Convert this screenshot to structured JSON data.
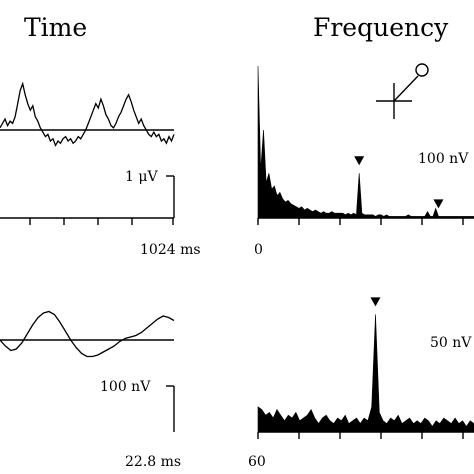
{
  "chart_data": [
    {
      "type": "line",
      "panel": "time-top",
      "title": "Time",
      "x_tick_label_end": "1024 ms",
      "scale_bar_label": "1 μV",
      "values": [
        0.1,
        0.3,
        0.5,
        0.2,
        0.4,
        0.3,
        0.6,
        1.2,
        1.8,
        2.1,
        1.6,
        1.2,
        0.9,
        1.1,
        0.6,
        0.4,
        0.1,
        -0.1,
        -0.3,
        -0.2,
        -0.5,
        -0.4,
        -0.7,
        -0.5,
        -0.6,
        -0.4,
        -0.3,
        -0.5,
        -0.4,
        -0.6,
        -0.5,
        -0.3,
        -0.4,
        -0.2,
        0,
        0.3,
        0.6,
        0.9,
        1.2,
        1.0,
        1.4,
        1.1,
        0.7,
        0.5,
        0.2,
        0.1,
        0.3,
        0.6,
        0.8,
        1.1,
        1.4,
        1.6,
        1.3,
        0.9,
        0.6,
        0.3,
        0.5,
        0.2,
        0,
        -0.2,
        -0.3,
        -0.1,
        -0.3,
        -0.2,
        -0.5,
        -0.4,
        -0.6,
        -0.3,
        -0.5,
        -0.2
      ]
    },
    {
      "type": "line",
      "panel": "time-bottom",
      "x_tick_label_end": "22.8 ms",
      "scale_bar_label": "100 nV",
      "values": [
        0,
        -0.4,
        -0.7,
        -0.6,
        -0.2,
        0.4,
        1.0,
        1.5,
        1.8,
        1.9,
        1.7,
        1.2,
        0.6,
        0,
        -0.5,
        -0.9,
        -1.1,
        -1.1,
        -1.0,
        -0.8,
        -0.6,
        -0.4,
        -0.1,
        0.1,
        0.2,
        0.3,
        0.5,
        0.8,
        1.1,
        1.4,
        1.6,
        1.5,
        1.3
      ]
    },
    {
      "type": "area",
      "panel": "frequency-top",
      "title": "Frequency",
      "x_tick_label_start": "0",
      "scale_bar_label": "100 nV",
      "values": [
        9.5,
        3.0,
        5.5,
        2.2,
        2.8,
        1.8,
        2.0,
        1.4,
        1.6,
        1.2,
        1.0,
        1.1,
        0.9,
        0.8,
        0.7,
        0.6,
        0.7,
        0.5,
        0.6,
        0.5,
        0.4,
        0.5,
        0.4,
        0.3,
        0.4,
        0.3,
        0.3,
        0.4,
        0.3,
        0.3,
        0.3,
        0.3,
        0.2,
        0.3,
        0.2,
        0.3,
        0.2,
        2.8,
        0.3,
        0.2,
        0.2,
        0.2,
        0.2,
        0.1,
        0.2,
        0.2,
        0.1,
        0.2,
        0.1,
        0.1,
        0.1,
        0.1,
        0.1,
        0.1,
        0.1,
        0.2,
        0.1,
        0.1,
        0.1,
        0.1,
        0.1,
        0.1,
        0.4,
        0.1,
        0.1,
        0.6,
        0.1,
        0.1,
        0.1,
        0.1,
        0.1,
        0.1,
        0.1,
        0.1,
        0.1,
        0.1,
        0.1,
        0.1,
        0.1,
        0.1
      ],
      "markers": [
        37,
        66
      ]
    },
    {
      "type": "area",
      "panel": "frequency-bottom",
      "x_tick_label_start": "60",
      "scale_bar_label": "50 nV",
      "values": [
        0.9,
        0.8,
        0.6,
        0.7,
        0.5,
        0.8,
        0.6,
        0.4,
        0.6,
        0.5,
        0.7,
        0.4,
        0.5,
        0.6,
        0.8,
        0.5,
        0.3,
        0.5,
        0.6,
        0.4,
        0.3,
        0.5,
        0.4,
        0.6,
        0.3,
        0.4,
        0.5,
        0.3,
        0.5,
        0.4,
        0.9,
        4.2,
        0.7,
        0.4,
        0.3,
        0.5,
        0.4,
        0.6,
        0.3,
        0.4,
        0.5,
        0.3,
        0.4,
        0.3,
        0.5,
        0.4,
        0.2,
        0.4,
        0.3,
        0.5,
        0.4,
        0.3,
        0.5,
        0.3,
        0.4,
        0.2,
        0.4,
        0.3
      ],
      "markers": [
        31
      ]
    }
  ],
  "colors": {
    "ink": "#000000",
    "background": "#ffffff"
  },
  "icons": [
    "electrode-icon",
    "marker-triangle-icon"
  ]
}
